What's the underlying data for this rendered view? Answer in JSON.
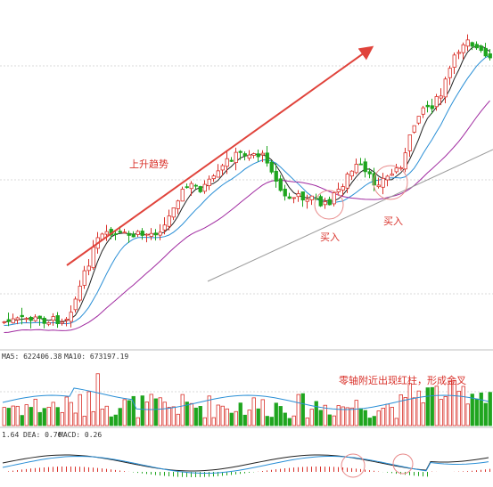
{
  "chart_data": {
    "type": "candlestick",
    "grid": true,
    "colors": {
      "up": "#d9312a",
      "down": "#1fa51f",
      "ma_short": "#222222",
      "ma_mid": "#2a8fd6",
      "ma_long": "#a02aa0",
      "ma_long2": "#9a9a9a",
      "arrow": "#e0433b",
      "annotation": "#d9312a"
    },
    "annotations": {
      "trend": "上升趋势",
      "buy_1": "买入",
      "buy_2": "买入",
      "volume_note": "零轴附近出现红柱，形成金叉"
    },
    "volume_panel": {
      "legend_ma5": "MA5: 622406.38",
      "legend_ma10": "MA10: 673197.19"
    },
    "macd_panel": {
      "legend_dif": "1.64",
      "legend_dea": "DEA: 0.76",
      "legend_macd": "MACD: 0.26"
    }
  }
}
